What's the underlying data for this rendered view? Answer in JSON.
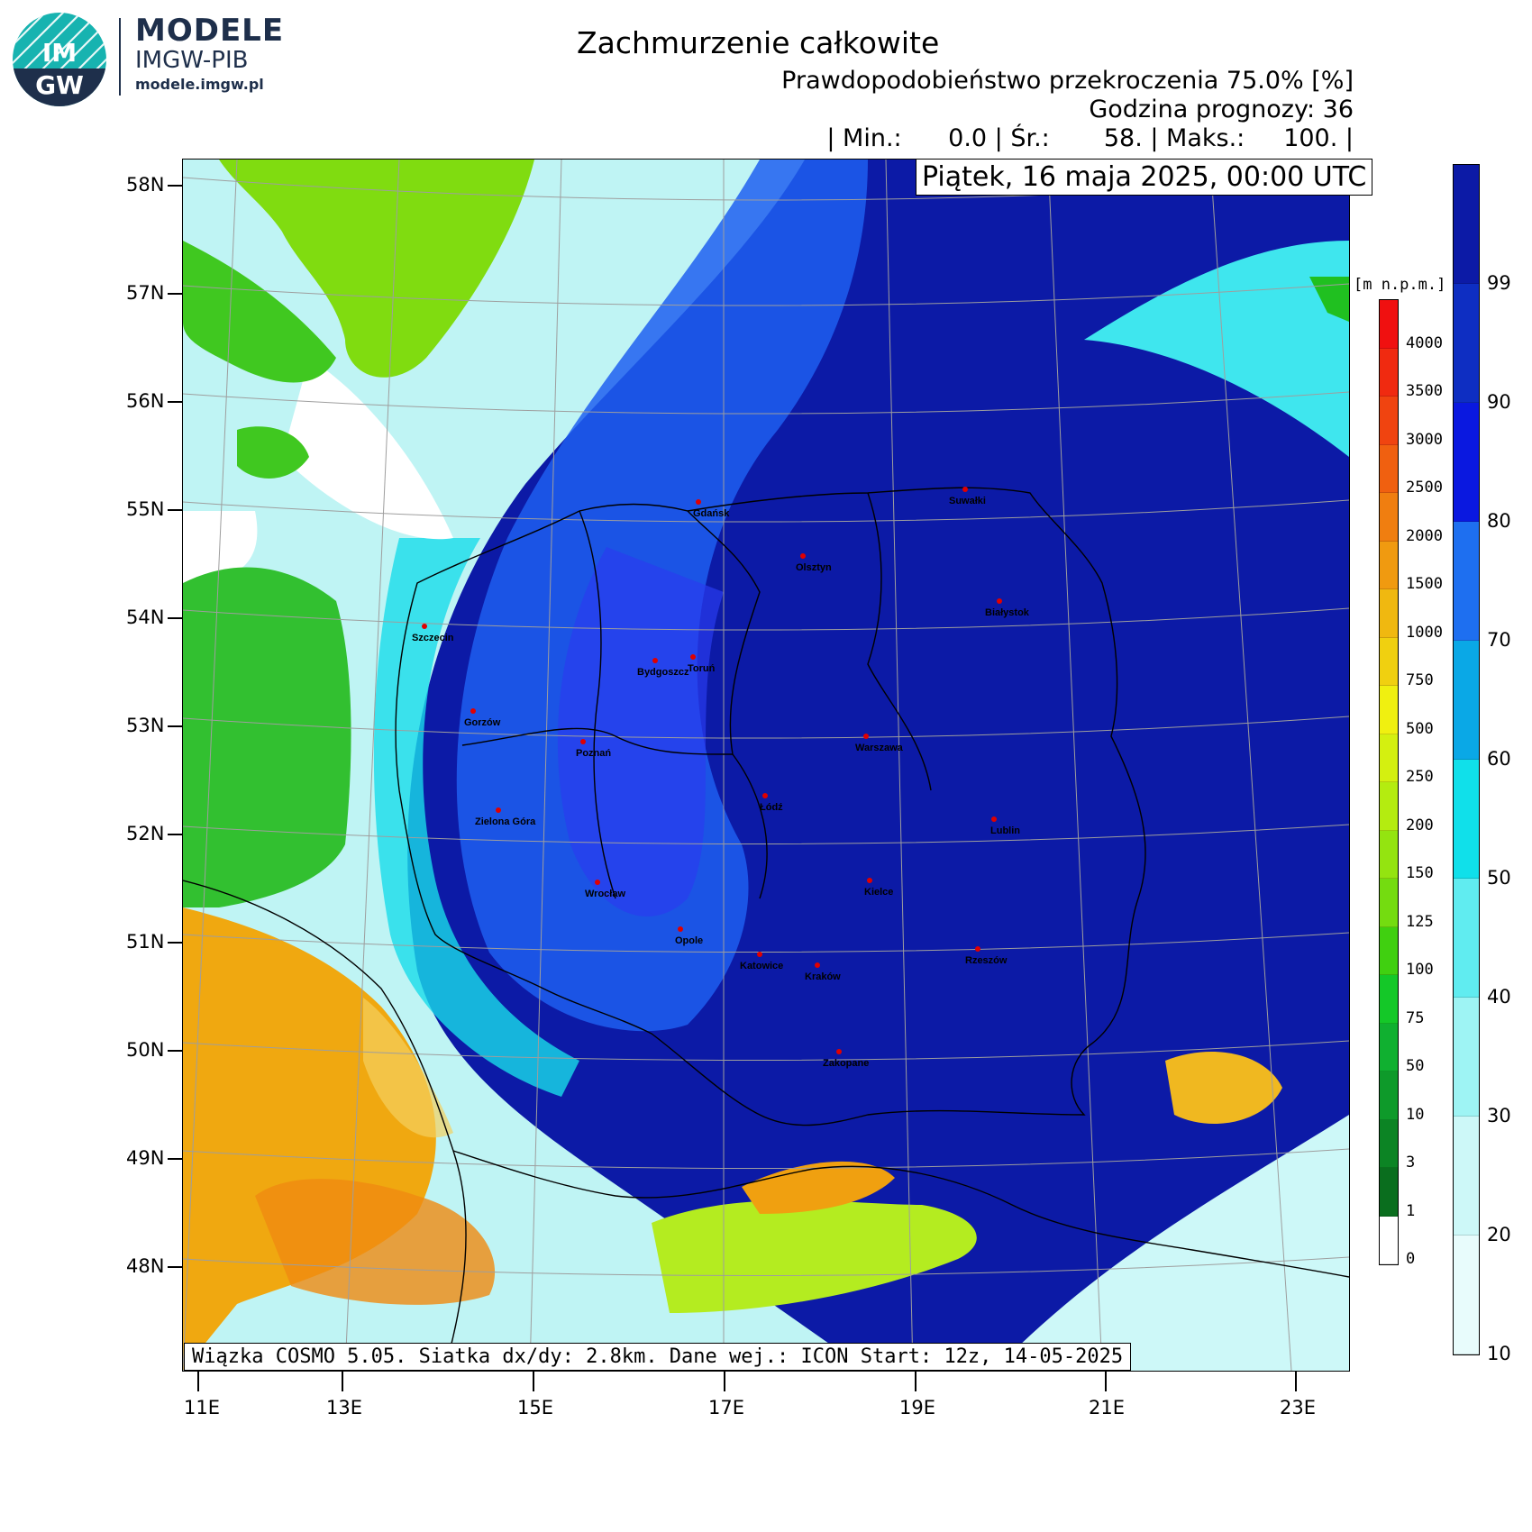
{
  "logo": {
    "badge": "IMGW",
    "line1": "MODELE",
    "line2": "IMGW-PIB",
    "line3": "modele.imgw.pl"
  },
  "header": {
    "title": "Zachmurzenie całkowite",
    "line2": "Prawdopodobieństwo przekroczenia 75.0% [%]",
    "line3": "Godzina prognozy: 36",
    "line4": "| Min.:      0.0 | Śr.:       58. | Maks.:     100. |",
    "date": "Piątek, 16 maja 2025, 00:00 UTC"
  },
  "footer": "Wiązka COSMO 5.05. Siatka dx/dy: 2.8km. Dane wej.: ICON Start: 12z, 14-05-2025",
  "map": {
    "latitudes": [
      "58N",
      "57N",
      "56N",
      "55N",
      "54N",
      "53N",
      "52N",
      "51N",
      "50N",
      "49N",
      "48N"
    ],
    "longitudes": [
      "11E",
      "13E",
      "15E",
      "17E",
      "19E",
      "21E",
      "23E"
    ],
    "cities": [
      {
        "name": "Gdańsk"
      },
      {
        "name": "Suwałki"
      },
      {
        "name": "Olsztyn"
      },
      {
        "name": "Białystok"
      },
      {
        "name": "Szczecin"
      },
      {
        "name": "Bydgoszcz"
      },
      {
        "name": "Toruń"
      },
      {
        "name": "Gorzów"
      },
      {
        "name": "Poznań"
      },
      {
        "name": "Warszawa"
      },
      {
        "name": "Zielona Góra"
      },
      {
        "name": "Łódź"
      },
      {
        "name": "Lublin"
      },
      {
        "name": "Wrocław"
      },
      {
        "name": "Kielce"
      },
      {
        "name": "Opole"
      },
      {
        "name": "Rzeszów"
      },
      {
        "name": "Katowice"
      },
      {
        "name": "Kraków"
      },
      {
        "name": "Zakopane"
      }
    ]
  },
  "cloud_colorbar": {
    "labels": [
      "99",
      "90",
      "80",
      "70",
      "60",
      "50",
      "40",
      "30",
      "20",
      "10"
    ],
    "colors": [
      "#0c1aa6",
      "#0e2ec2",
      "#0a18e0",
      "#1e6ff0",
      "#0aa8e6",
      "#10e0ea",
      "#60ecf0",
      "#9ef4f4",
      "#cdf8f8",
      "#e8fcfc"
    ]
  },
  "elevation_colorbar": {
    "unit": "[m n.p.m.]",
    "labels": [
      "4000",
      "3500",
      "3000",
      "2500",
      "2000",
      "1500",
      "1000",
      "750",
      "500",
      "250",
      "200",
      "150",
      "125",
      "100",
      "75",
      "50",
      "10",
      "3",
      "1",
      "0"
    ],
    "colors": [
      "#f01010",
      "#f02a10",
      "#f04410",
      "#f06010",
      "#f07e10",
      "#f09a10",
      "#f0b810",
      "#f0d010",
      "#f0f010",
      "#d4f010",
      "#b4ec10",
      "#94e410",
      "#74dc10",
      "#40d010",
      "#14c828",
      "#10b030",
      "#0e9a2a",
      "#0c8424",
      "#0a6e1e",
      "#ffffff"
    ]
  }
}
